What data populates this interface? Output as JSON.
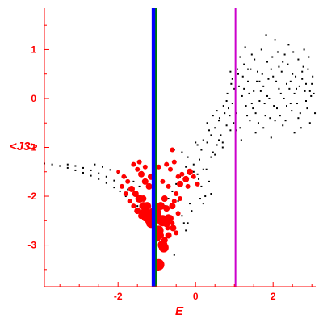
{
  "chart_data": {
    "type": "scatter",
    "xlabel": "E",
    "ylabel": "<J3>",
    "xlim": [
      -3.9,
      3.1
    ],
    "ylim": [
      -3.85,
      1.85
    ],
    "xticks": [
      -2,
      0,
      2
    ],
    "yticks": [
      1,
      0,
      -1,
      -2,
      -3
    ],
    "grid": false,
    "colors": {
      "axis": "#ff0000",
      "dots": "#000000",
      "circles": "#ff0000",
      "line_blue": "#0000ff",
      "line_green": "#008000",
      "line_magenta": "#cc00cc"
    },
    "vertical_lines": [
      {
        "name": "",
        "x": -1.08,
        "color": "#0000ff",
        "width": 5
      },
      {
        "name": "",
        "x": -1.02,
        "color": "#008000",
        "width": 2
      },
      {
        "name": "",
        "x": 1.03,
        "color": "#cc00cc",
        "width": 2
      }
    ],
    "series": [
      {
        "name": "",
        "kind": "dots",
        "points": [
          [
            -3.9,
            -1.33
          ],
          [
            -3.7,
            -1.35
          ],
          [
            -3.5,
            -1.38
          ],
          [
            -3.3,
            -1.42
          ],
          [
            -3.1,
            -1.47
          ],
          [
            -2.9,
            -1.52
          ],
          [
            -2.7,
            -1.58
          ],
          [
            -2.5,
            -1.65
          ],
          [
            -2.3,
            -1.73
          ],
          [
            -2.1,
            -1.82
          ],
          [
            -1.95,
            -1.9
          ],
          [
            -1.8,
            -2.0
          ],
          [
            -1.65,
            -2.1
          ],
          [
            -1.5,
            -2.2
          ],
          [
            -3.3,
            -1.35
          ],
          [
            -3.1,
            -1.38
          ],
          [
            -2.9,
            -1.42
          ],
          [
            -2.7,
            -1.47
          ],
          [
            -2.5,
            -1.53
          ],
          [
            -2.3,
            -1.6
          ],
          [
            -2.1,
            -1.68
          ],
          [
            -1.9,
            -1.77
          ],
          [
            -1.75,
            -1.86
          ],
          [
            -1.6,
            -1.95
          ],
          [
            -1.45,
            -2.05
          ],
          [
            -2.6,
            -1.35
          ],
          [
            -2.4,
            -1.4
          ],
          [
            -2.2,
            -1.46
          ],
          [
            -2.0,
            -1.53
          ],
          [
            -1.8,
            -1.61
          ],
          [
            -1.6,
            -1.7
          ],
          [
            -1.45,
            -1.8
          ],
          [
            -0.55,
            -1.05
          ],
          [
            -0.35,
            -1.1
          ],
          [
            -0.2,
            -1.2
          ],
          [
            -0.05,
            -1.35
          ],
          [
            0.05,
            -1.55
          ],
          [
            0.15,
            -1.8
          ],
          [
            0.25,
            -2.0
          ],
          [
            0.2,
            -2.15
          ],
          [
            -0.1,
            -2.3
          ],
          [
            -0.3,
            -2.55
          ],
          [
            -0.55,
            -3.2
          ],
          [
            -0.25,
            -2.7
          ],
          [
            0.35,
            -1.7
          ],
          [
            0.4,
            -1.95
          ],
          [
            0.28,
            -1.45
          ],
          [
            0.1,
            -1.25
          ],
          [
            0.0,
            -0.9
          ],
          [
            0.05,
            -0.95
          ],
          [
            0.15,
            -1.05
          ],
          [
            0.2,
            -0.85
          ],
          [
            0.3,
            -0.9
          ],
          [
            0.4,
            -0.75
          ],
          [
            0.45,
            -1.1
          ],
          [
            0.5,
            -0.6
          ],
          [
            0.55,
            -0.95
          ],
          [
            0.6,
            -0.45
          ],
          [
            0.65,
            -0.75
          ],
          [
            0.7,
            -1.0
          ],
          [
            0.75,
            -0.3
          ],
          [
            0.8,
            -0.55
          ],
          [
            0.85,
            -0.2
          ],
          [
            0.9,
            -0.65
          ],
          [
            0.95,
            -0.1
          ],
          [
            0.3,
            -0.5
          ],
          [
            0.35,
            -0.65
          ],
          [
            0.45,
            -0.35
          ],
          [
            0.55,
            -0.25
          ],
          [
            0.62,
            -0.4
          ],
          [
            0.72,
            -0.15
          ],
          [
            0.82,
            0.1
          ],
          [
            0.88,
            -0.35
          ],
          [
            0.92,
            0.3
          ],
          [
            0.98,
            -0.5
          ],
          [
            1.0,
            0.2
          ],
          [
            1.05,
            -0.3
          ],
          [
            1.1,
            0.5
          ],
          [
            1.15,
            -0.6
          ],
          [
            1.2,
            0.05
          ],
          [
            1.25,
            0.7
          ],
          [
            1.3,
            -0.15
          ],
          [
            1.35,
            0.35
          ],
          [
            1.4,
            -0.45
          ],
          [
            1.45,
            0.9
          ],
          [
            1.5,
            0.15
          ],
          [
            1.55,
            -0.7
          ],
          [
            1.6,
            0.55
          ],
          [
            1.65,
            -0.05
          ],
          [
            1.7,
            1.0
          ],
          [
            1.75,
            0.25
          ],
          [
            1.8,
            -0.35
          ],
          [
            1.85,
            0.75
          ],
          [
            1.9,
            0.0
          ],
          [
            1.95,
            -0.8
          ],
          [
            2.0,
            0.45
          ],
          [
            2.05,
            1.2
          ],
          [
            2.1,
            -0.2
          ],
          [
            2.15,
            0.65
          ],
          [
            2.2,
            0.1
          ],
          [
            2.25,
            -0.55
          ],
          [
            2.3,
            0.9
          ],
          [
            2.35,
            0.3
          ],
          [
            2.4,
            1.1
          ],
          [
            2.45,
            -0.1
          ],
          [
            2.5,
            0.5
          ],
          [
            2.55,
            -0.7
          ],
          [
            2.6,
            0.2
          ],
          [
            2.65,
            0.8
          ],
          [
            2.7,
            -0.3
          ],
          [
            2.75,
            0.4
          ],
          [
            2.8,
            1.0
          ],
          [
            2.85,
            -0.05
          ],
          [
            2.9,
            0.6
          ],
          [
            2.95,
            -0.5
          ],
          [
            3.0,
            0.3
          ],
          [
            3.05,
            0.1
          ],
          [
            1.08,
            0.6
          ],
          [
            1.12,
            0.25
          ],
          [
            1.18,
            -0.85
          ],
          [
            1.22,
            0.45
          ],
          [
            1.28,
            1.05
          ],
          [
            1.33,
            -0.35
          ],
          [
            1.38,
            0.1
          ],
          [
            1.42,
            0.6
          ],
          [
            1.48,
            -0.2
          ],
          [
            1.52,
            0.8
          ],
          [
            1.58,
            0.35
          ],
          [
            1.62,
            -0.5
          ],
          [
            1.68,
            0.15
          ],
          [
            1.72,
            0.5
          ],
          [
            1.78,
            -0.1
          ],
          [
            1.82,
            1.3
          ],
          [
            1.88,
            0.4
          ],
          [
            1.92,
            -0.4
          ],
          [
            1.98,
            0.85
          ],
          [
            2.02,
            -0.15
          ],
          [
            2.08,
            0.35
          ],
          [
            2.12,
            0.95
          ],
          [
            2.18,
            -0.35
          ],
          [
            2.22,
            0.55
          ],
          [
            2.28,
            0.0
          ],
          [
            2.32,
            -0.45
          ],
          [
            2.38,
            0.7
          ],
          [
            2.42,
            0.2
          ],
          [
            2.48,
            -0.25
          ],
          [
            2.52,
            0.95
          ],
          [
            2.58,
            0.45
          ],
          [
            2.62,
            -0.1
          ],
          [
            2.68,
            0.25
          ],
          [
            2.72,
            -0.6
          ],
          [
            2.78,
            0.65
          ],
          [
            2.82,
            0.15
          ],
          [
            2.88,
            -0.2
          ],
          [
            2.92,
            0.85
          ],
          [
            2.98,
            0.05
          ],
          [
            3.02,
            0.45
          ],
          [
            3.08,
            -0.3
          ],
          [
            1.55,
            -0.3
          ],
          [
            1.65,
            0.35
          ],
          [
            1.75,
            -0.6
          ],
          [
            1.85,
            0.05
          ],
          [
            1.95,
            0.6
          ],
          [
            2.05,
            -0.45
          ],
          [
            2.15,
            0.2
          ],
          [
            2.25,
            0.75
          ],
          [
            2.35,
            -0.15
          ],
          [
            2.45,
            0.35
          ],
          [
            2.55,
            0.1
          ],
          [
            2.65,
            -0.4
          ],
          [
            2.75,
            0.55
          ],
          [
            2.85,
            0.3
          ],
          [
            2.95,
            0.15
          ],
          [
            1.35,
            0.6
          ],
          [
            1.45,
            -0.1
          ],
          [
            1.25,
            0.2
          ],
          [
            1.15,
            0.85
          ],
          [
            1.05,
            -0.65
          ],
          [
            0.7,
            -0.9
          ],
          [
            0.8,
            -0.05
          ],
          [
            0.9,
            0.55
          ],
          [
            0.95,
            0.4
          ],
          [
            0.6,
            -0.85
          ],
          [
            0.5,
            -1.15
          ],
          [
            0.4,
            -1.2
          ],
          [
            0.2,
            -1.45
          ],
          [
            0.08,
            -1.65
          ],
          [
            -0.05,
            -1.5
          ],
          [
            -0.15,
            -1.55
          ],
          [
            -0.25,
            -1.4
          ],
          [
            -0.4,
            -1.6
          ],
          [
            -0.5,
            -1.75
          ],
          [
            -0.6,
            -1.9
          ],
          [
            -0.7,
            -2.05
          ],
          [
            -0.8,
            -2.2
          ],
          [
            -0.9,
            -2.4
          ],
          [
            -0.45,
            -2.1
          ],
          [
            -0.35,
            -2.4
          ],
          [
            -0.2,
            -2.55
          ],
          [
            -0.15,
            -2.15
          ],
          [
            0.12,
            -2.05
          ]
        ]
      },
      {
        "name": "",
        "kind": "circles",
        "points": [
          [
            -1.9,
            -1.8,
            3
          ],
          [
            -1.8,
            -1.95,
            3
          ],
          [
            -1.7,
            -2.1,
            3
          ],
          [
            -1.6,
            -2.2,
            3
          ],
          [
            -1.5,
            -2.3,
            4
          ],
          [
            -1.4,
            -2.4,
            4
          ],
          [
            -1.3,
            -2.45,
            4
          ],
          [
            -1.2,
            -2.5,
            5
          ],
          [
            -2.0,
            -1.5,
            2
          ],
          [
            -1.85,
            -1.6,
            3
          ],
          [
            -1.75,
            -1.7,
            3
          ],
          [
            -1.65,
            -1.85,
            4
          ],
          [
            -1.55,
            -1.95,
            4
          ],
          [
            -1.45,
            -2.05,
            5
          ],
          [
            -1.35,
            -2.2,
            5
          ],
          [
            -1.25,
            -2.35,
            6
          ],
          [
            -1.15,
            -2.4,
            6
          ],
          [
            -1.6,
            -1.35,
            3
          ],
          [
            -1.5,
            -1.45,
            3
          ],
          [
            -1.4,
            -1.55,
            4
          ],
          [
            -1.3,
            -1.7,
            4
          ],
          [
            -1.2,
            -1.8,
            4
          ],
          [
            -1.35,
            -2.05,
            4
          ],
          [
            -1.25,
            -2.2,
            5
          ],
          [
            -1.45,
            -1.3,
            3
          ],
          [
            -1.3,
            -1.4,
            3
          ],
          [
            -1.15,
            -1.6,
            4
          ],
          [
            -1.05,
            -1.75,
            3
          ],
          [
            -1.05,
            -2.35,
            8
          ],
          [
            -1.15,
            -2.55,
            6
          ],
          [
            -1.25,
            -2.38,
            7
          ],
          [
            -1.35,
            -2.35,
            5
          ],
          [
            -0.85,
            -2.5,
            7
          ],
          [
            -0.75,
            -2.55,
            5
          ],
          [
            -0.9,
            -2.2,
            5
          ],
          [
            -0.8,
            -2.05,
            4
          ],
          [
            -0.75,
            -2.25,
            4
          ],
          [
            -0.7,
            -2.45,
            5
          ],
          [
            -0.85,
            -3.0,
            6
          ],
          [
            -0.8,
            -2.9,
            4
          ],
          [
            -0.95,
            -2.7,
            6
          ],
          [
            -1.0,
            -2.85,
            5
          ],
          [
            -0.9,
            -2.8,
            4
          ],
          [
            -0.82,
            -3.05,
            6
          ],
          [
            -0.95,
            -3.4,
            7
          ],
          [
            -1.0,
            -3.45,
            5
          ],
          [
            -0.6,
            -1.05,
            3
          ],
          [
            -0.55,
            -1.3,
            3
          ],
          [
            -0.45,
            -1.6,
            3
          ],
          [
            -0.4,
            -1.75,
            4
          ],
          [
            -0.35,
            -1.55,
            3
          ],
          [
            -0.25,
            -1.65,
            4
          ],
          [
            -0.15,
            -1.5,
            4
          ],
          [
            -0.05,
            -1.6,
            3
          ],
          [
            0.05,
            -1.75,
            3
          ],
          [
            -0.2,
            -1.8,
            3
          ],
          [
            -0.5,
            -1.95,
            3
          ],
          [
            -0.6,
            -2.2,
            4
          ],
          [
            -0.55,
            -2.1,
            3
          ],
          [
            -0.7,
            -1.8,
            3
          ],
          [
            -0.65,
            -1.45,
            3
          ],
          [
            -0.75,
            -1.35,
            3
          ],
          [
            -0.85,
            -1.7,
            3
          ],
          [
            -0.95,
            -1.4,
            3
          ],
          [
            -0.65,
            -2.45,
            4
          ],
          [
            -0.6,
            -2.55,
            3
          ],
          [
            -0.5,
            -2.75,
            3
          ],
          [
            -0.58,
            -2.65,
            4
          ],
          [
            -0.45,
            -2.35,
            3
          ],
          [
            -0.4,
            -2.05,
            3
          ],
          [
            -0.72,
            -2.65,
            3
          ],
          [
            -0.7,
            -2.8,
            4
          ]
        ]
      }
    ]
  }
}
